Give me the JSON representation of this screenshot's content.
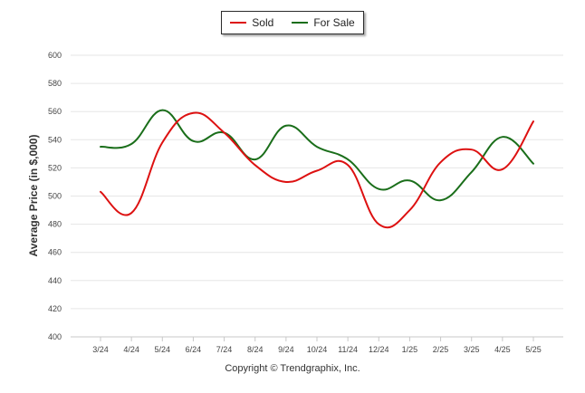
{
  "chart_data": {
    "type": "line",
    "x": [
      "3/24",
      "4/24",
      "5/24",
      "6/24",
      "7/24",
      "8/24",
      "9/24",
      "10/24",
      "11/24",
      "12/24",
      "1/25",
      "2/25",
      "3/25",
      "4/25",
      "5/25"
    ],
    "series": [
      {
        "name": "Sold",
        "color": "#dd1111",
        "values": [
          503,
          488,
          538,
          559,
          545,
          522,
          510,
          518,
          522,
          480,
          490,
          524,
          533,
          519,
          553
        ]
      },
      {
        "name": "For Sale",
        "color": "#1a6e1a",
        "values": [
          535,
          537,
          561,
          539,
          545,
          526,
          550,
          535,
          526,
          505,
          511,
          497,
          517,
          542,
          523
        ]
      }
    ],
    "ylabel": "Average Price (in $,000)",
    "ylim": [
      400,
      600
    ],
    "yticks": [
      400,
      420,
      440,
      460,
      480,
      500,
      520,
      540,
      560,
      580,
      600
    ],
    "grid": true,
    "legend_position": "top-center"
  },
  "footer": {
    "copyright": "Copyright © Trendgraphix, Inc."
  }
}
